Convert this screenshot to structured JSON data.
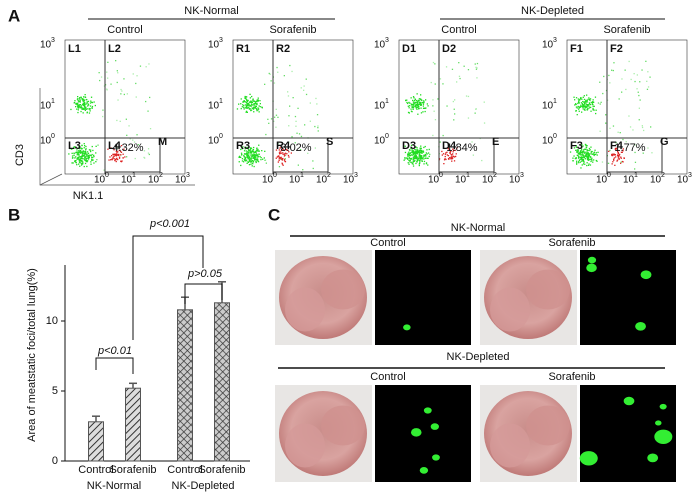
{
  "panel_a": {
    "label": "A",
    "groups": [
      {
        "title": "NK-Normal",
        "conditions": [
          "Control",
          "Sorafenib"
        ]
      },
      {
        "title": "NK-Depleted",
        "conditions": [
          "Control",
          "Sorafenib"
        ]
      }
    ],
    "plots": [
      {
        "quadrants": [
          "L1",
          "L2",
          "L3",
          "L4"
        ],
        "gate": "M",
        "percent": "4.32%"
      },
      {
        "quadrants": [
          "R1",
          "R2",
          "R3",
          "R4"
        ],
        "gate": "S",
        "percent": "3.02%"
      },
      {
        "quadrants": [
          "D1",
          "D2",
          "D3",
          "D4"
        ],
        "gate": "E",
        "percent": "1.84%"
      },
      {
        "quadrants": [
          "F1",
          "F2",
          "F3",
          "F4"
        ],
        "gate": "G",
        "percent": "1.77%"
      }
    ],
    "tick_base": "10",
    "x_tick_exponents": [
      "0",
      "1",
      "2",
      "3"
    ],
    "y_tick_exponents": [
      "3",
      "1",
      "0"
    ],
    "y_label": "CD3",
    "x_label": "NK1.1"
  },
  "chart_data": {
    "type": "bar",
    "panel_label": "B",
    "y_label": "Area of meatstatic foci/total lung(%)",
    "categories": [
      "Control",
      "Sorafenib",
      "Control",
      "Sorafenib"
    ],
    "groups": [
      "NK-Normal",
      "NK-Depleted"
    ],
    "values": [
      2.8,
      5.2,
      10.8,
      11.3
    ],
    "errors": [
      0.4,
      0.35,
      0.9,
      1.5
    ],
    "hatch": [
      "diagonal",
      "diagonal",
      "cross",
      "cross"
    ],
    "color": "#555555",
    "ylim": [
      0,
      14
    ],
    "yticks": [
      0,
      5,
      10
    ],
    "annotations": [
      "p<0.01",
      "p<0.001",
      "p>0.05"
    ]
  },
  "panel_c": {
    "label": "C",
    "rows": [
      {
        "title": "NK-Normal",
        "conditions": [
          "Control",
          "Sorafenib"
        ]
      },
      {
        "title": "NK-Depleted",
        "conditions": [
          "Control",
          "Sorafenib"
        ]
      }
    ]
  }
}
